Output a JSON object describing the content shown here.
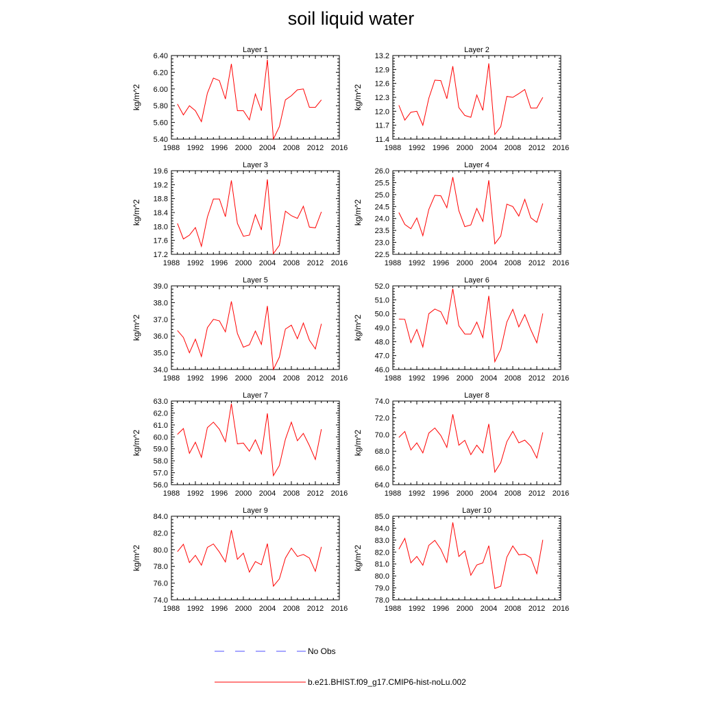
{
  "figure": {
    "title": "soil liquid water",
    "legend": [
      {
        "label": "No Obs",
        "color": "#4d4dff",
        "dash": "dashed"
      },
      {
        "label": "b.e21.BHIST.f09_g17.CMIP6-hist-noLu.002",
        "color": "#ff0000",
        "dash": "solid"
      }
    ]
  },
  "chart_data": [
    {
      "type": "line",
      "title": "Layer 1",
      "ylabel": "kg/m^2",
      "xlim": [
        1988,
        2016
      ],
      "ylim": [
        5.4,
        6.4
      ],
      "xticks": [
        "1988",
        "1992",
        "1996",
        "2000",
        "2004",
        "2008",
        "2012",
        "2016"
      ],
      "yticks": [
        "5.40",
        "5.60",
        "5.80",
        "6.00",
        "6.20",
        "6.40"
      ],
      "x": [
        1989,
        1990,
        1991,
        1992,
        1993,
        1994,
        1995,
        1996,
        1997,
        1998,
        1999,
        2000,
        2001,
        2002,
        2003,
        2004,
        2005,
        2006,
        2007,
        2008,
        2009,
        2010,
        2011,
        2012,
        2013
      ],
      "series": [
        {
          "name": "b.e21.BHIST.f09_g17.CMIP6-hist-noLu.002",
          "color": "#ff0000",
          "values": [
            5.82,
            5.69,
            5.8,
            5.74,
            5.61,
            5.95,
            6.13,
            6.1,
            5.88,
            6.3,
            5.74,
            5.74,
            5.63,
            5.94,
            5.74,
            6.35,
            5.4,
            5.55,
            5.87,
            5.92,
            5.99,
            6.0,
            5.78,
            5.78,
            5.87
          ]
        }
      ]
    },
    {
      "type": "line",
      "title": "Layer 2",
      "ylabel": "kg/m^2",
      "xlim": [
        1988,
        2016
      ],
      "ylim": [
        11.4,
        13.2
      ],
      "xticks": [
        "1988",
        "1992",
        "1996",
        "2000",
        "2004",
        "2008",
        "2012",
        "2016"
      ],
      "yticks": [
        "11.4",
        "11.7",
        "12.0",
        "12.3",
        "12.6",
        "12.9",
        "13.2"
      ],
      "x": [
        1989,
        1990,
        1991,
        1992,
        1993,
        1994,
        1995,
        1996,
        1997,
        1998,
        1999,
        2000,
        2001,
        2002,
        2003,
        2004,
        2005,
        2006,
        2007,
        2008,
        2009,
        2010,
        2011,
        2012,
        2013
      ],
      "series": [
        {
          "name": "b.e21.BHIST.f09_g17.CMIP6-hist-noLu.002",
          "color": "#ff0000",
          "values": [
            12.13,
            11.81,
            11.98,
            12.0,
            11.7,
            12.28,
            12.67,
            12.66,
            12.27,
            12.97,
            12.08,
            11.91,
            11.87,
            12.35,
            12.02,
            13.03,
            11.5,
            11.67,
            12.32,
            12.3,
            12.38,
            12.47,
            12.07,
            12.07,
            12.3
          ]
        }
      ]
    },
    {
      "type": "line",
      "title": "Layer 3",
      "ylabel": "kg/m^2",
      "xlim": [
        1988,
        2016
      ],
      "ylim": [
        17.2,
        19.6
      ],
      "xticks": [
        "1988",
        "1992",
        "1996",
        "2000",
        "2004",
        "2008",
        "2012",
        "2016"
      ],
      "yticks": [
        "17.2",
        "17.6",
        "18.0",
        "18.4",
        "18.8",
        "19.2",
        "19.6"
      ],
      "x": [
        1989,
        1990,
        1991,
        1992,
        1993,
        1994,
        1995,
        1996,
        1997,
        1998,
        1999,
        2000,
        2001,
        2002,
        2003,
        2004,
        2005,
        2006,
        2007,
        2008,
        2009,
        2010,
        2011,
        2012,
        2013
      ],
      "series": [
        {
          "name": "b.e21.BHIST.f09_g17.CMIP6-hist-noLu.002",
          "color": "#ff0000",
          "values": [
            18.09,
            17.64,
            17.75,
            17.97,
            17.43,
            18.27,
            18.79,
            18.79,
            18.28,
            19.32,
            18.09,
            17.72,
            17.75,
            18.34,
            17.9,
            19.35,
            17.22,
            17.46,
            18.44,
            18.31,
            18.23,
            18.58,
            17.98,
            17.96,
            18.42
          ]
        }
      ]
    },
    {
      "type": "line",
      "title": "Layer 4",
      "ylabel": "kg/m^2",
      "xlim": [
        1988,
        2016
      ],
      "ylim": [
        22.5,
        26.0
      ],
      "xticks": [
        "1988",
        "1992",
        "1996",
        "2000",
        "2004",
        "2008",
        "2012",
        "2016"
      ],
      "yticks": [
        "22.5",
        "23.0",
        "23.5",
        "24.0",
        "24.5",
        "25.0",
        "25.5",
        "26.0"
      ],
      "x": [
        1989,
        1990,
        1991,
        1992,
        1993,
        1994,
        1995,
        1996,
        1997,
        1998,
        1999,
        2000,
        2001,
        2002,
        2003,
        2004,
        2005,
        2006,
        2007,
        2008,
        2009,
        2010,
        2011,
        2012,
        2013
      ],
      "series": [
        {
          "name": "b.e21.BHIST.f09_g17.CMIP6-hist-noLu.002",
          "color": "#ff0000",
          "values": [
            24.25,
            23.75,
            23.57,
            24.02,
            23.28,
            24.38,
            24.97,
            24.95,
            24.45,
            25.73,
            24.33,
            23.66,
            23.73,
            24.42,
            23.88,
            25.6,
            22.94,
            23.27,
            24.6,
            24.5,
            24.1,
            24.8,
            24.03,
            23.84,
            24.63
          ]
        }
      ]
    },
    {
      "type": "line",
      "title": "Layer 5",
      "ylabel": "kg/m^2",
      "xlim": [
        1988,
        2016
      ],
      "ylim": [
        34.0,
        39.0
      ],
      "xticks": [
        "1988",
        "1992",
        "1996",
        "2000",
        "2004",
        "2008",
        "2012",
        "2016"
      ],
      "yticks": [
        "34.0",
        "35.0",
        "36.0",
        "37.0",
        "38.0",
        "39.0"
      ],
      "x": [
        1989,
        1990,
        1991,
        1992,
        1993,
        1994,
        1995,
        1996,
        1997,
        1998,
        1999,
        2000,
        2001,
        2002,
        2003,
        2004,
        2005,
        2006,
        2007,
        2008,
        2009,
        2010,
        2011,
        2012,
        2013
      ],
      "series": [
        {
          "name": "b.e21.BHIST.f09_g17.CMIP6-hist-noLu.002",
          "color": "#ff0000",
          "values": [
            36.33,
            35.92,
            35.0,
            35.81,
            34.78,
            36.5,
            37.0,
            36.91,
            36.25,
            38.07,
            36.15,
            35.33,
            35.48,
            36.3,
            35.5,
            37.8,
            34.0,
            34.74,
            36.42,
            36.65,
            35.84,
            36.78,
            35.76,
            35.23,
            36.73
          ]
        }
      ]
    },
    {
      "type": "line",
      "title": "Layer 6",
      "ylabel": "kg/m^2",
      "xlim": [
        1988,
        2016
      ],
      "ylim": [
        46.0,
        52.0
      ],
      "xticks": [
        "1988",
        "1992",
        "1996",
        "2000",
        "2004",
        "2008",
        "2012",
        "2016"
      ],
      "yticks": [
        "46.0",
        "47.0",
        "48.0",
        "49.0",
        "50.0",
        "51.0",
        "52.0"
      ],
      "x": [
        1989,
        1990,
        1991,
        1992,
        1993,
        1994,
        1995,
        1996,
        1997,
        1998,
        1999,
        2000,
        2001,
        2002,
        2003,
        2004,
        2005,
        2006,
        2007,
        2008,
        2009,
        2010,
        2011,
        2012,
        2013
      ],
      "series": [
        {
          "name": "b.e21.BHIST.f09_g17.CMIP6-hist-noLu.002",
          "color": "#ff0000",
          "values": [
            49.62,
            49.6,
            47.93,
            48.87,
            47.62,
            50.0,
            50.34,
            50.14,
            49.26,
            51.8,
            49.14,
            48.55,
            48.55,
            49.4,
            48.29,
            51.28,
            46.56,
            47.45,
            49.4,
            50.32,
            49.06,
            49.94,
            48.85,
            47.92,
            50.02
          ]
        }
      ]
    },
    {
      "type": "line",
      "title": "Layer 7",
      "ylabel": "kg/m^2",
      "xlim": [
        1988,
        2016
      ],
      "ylim": [
        56.0,
        63.0
      ],
      "xticks": [
        "1988",
        "1992",
        "1996",
        "2000",
        "2004",
        "2008",
        "2012",
        "2016"
      ],
      "yticks": [
        "56.0",
        "57.0",
        "58.0",
        "59.0",
        "60.0",
        "61.0",
        "62.0",
        "63.0"
      ],
      "x": [
        1989,
        1990,
        1991,
        1992,
        1993,
        1994,
        1995,
        1996,
        1997,
        1998,
        1999,
        2000,
        2001,
        2002,
        2003,
        2004,
        2005,
        2006,
        2007,
        2008,
        2009,
        2010,
        2011,
        2012,
        2013
      ],
      "series": [
        {
          "name": "b.e21.BHIST.f09_g17.CMIP6-hist-noLu.002",
          "color": "#ff0000",
          "values": [
            60.21,
            60.7,
            58.63,
            59.55,
            58.29,
            60.78,
            61.23,
            60.65,
            59.6,
            62.78,
            59.42,
            59.48,
            58.8,
            59.75,
            58.57,
            61.97,
            56.76,
            57.6,
            59.8,
            61.23,
            59.68,
            60.29,
            59.27,
            58.11,
            60.65
          ]
        }
      ]
    },
    {
      "type": "line",
      "title": "Layer 8",
      "ylabel": "kg/m^2",
      "xlim": [
        1988,
        2016
      ],
      "ylim": [
        64.0,
        74.0
      ],
      "xticks": [
        "1988",
        "1992",
        "1996",
        "2000",
        "2004",
        "2008",
        "2012",
        "2016"
      ],
      "yticks": [
        "64.0",
        "66.0",
        "68.0",
        "70.0",
        "72.0",
        "74.0"
      ],
      "x": [
        1989,
        1990,
        1991,
        1992,
        1993,
        1994,
        1995,
        1996,
        1997,
        1998,
        1999,
        2000,
        2001,
        2002,
        2003,
        2004,
        2005,
        2006,
        2007,
        2008,
        2009,
        2010,
        2011,
        2012,
        2013
      ],
      "series": [
        {
          "name": "b.e21.BHIST.f09_g17.CMIP6-hist-noLu.002",
          "color": "#ff0000",
          "values": [
            69.65,
            70.36,
            68.15,
            69.0,
            67.8,
            70.17,
            70.78,
            69.88,
            68.46,
            72.41,
            68.72,
            69.3,
            67.59,
            68.72,
            67.8,
            71.26,
            65.5,
            66.65,
            69.14,
            70.38,
            69.0,
            69.33,
            68.59,
            67.19,
            70.25
          ]
        }
      ]
    },
    {
      "type": "line",
      "title": "Layer 9",
      "ylabel": "kg/m^2",
      "xlim": [
        1988,
        2016
      ],
      "ylim": [
        74.0,
        84.0
      ],
      "xticks": [
        "1988",
        "1992",
        "1996",
        "2000",
        "2004",
        "2008",
        "2012",
        "2016"
      ],
      "yticks": [
        "74.0",
        "76.0",
        "78.0",
        "80.0",
        "82.0",
        "84.0"
      ],
      "x": [
        1989,
        1990,
        1991,
        1992,
        1993,
        1994,
        1995,
        1996,
        1997,
        1998,
        1999,
        2000,
        2001,
        2002,
        2003,
        2004,
        2005,
        2006,
        2007,
        2008,
        2009,
        2010,
        2011,
        2012,
        2013
      ],
      "series": [
        {
          "name": "b.e21.BHIST.f09_g17.CMIP6-hist-noLu.002",
          "color": "#ff0000",
          "values": [
            79.76,
            80.65,
            78.46,
            79.32,
            78.14,
            80.27,
            80.68,
            79.72,
            78.53,
            82.34,
            78.85,
            79.58,
            77.32,
            78.57,
            78.2,
            80.72,
            75.64,
            76.51,
            78.99,
            80.19,
            79.19,
            79.43,
            79.0,
            77.41,
            80.33
          ]
        }
      ]
    },
    {
      "type": "line",
      "title": "Layer 10",
      "ylabel": "kg/m^2",
      "xlim": [
        1988,
        2016
      ],
      "ylim": [
        78.0,
        85.0
      ],
      "xticks": [
        "1988",
        "1992",
        "1996",
        "2000",
        "2004",
        "2008",
        "2012",
        "2016"
      ],
      "yticks": [
        "78.0",
        "79.0",
        "80.0",
        "81.0",
        "82.0",
        "83.0",
        "84.0",
        "85.0"
      ],
      "x": [
        1989,
        1990,
        1991,
        1992,
        1993,
        1994,
        1995,
        1996,
        1997,
        1998,
        1999,
        2000,
        2001,
        2002,
        2003,
        2004,
        2005,
        2006,
        2007,
        2008,
        2009,
        2010,
        2011,
        2012,
        2013
      ],
      "series": [
        {
          "name": "b.e21.BHIST.f09_g17.CMIP6-hist-noLu.002",
          "color": "#ff0000",
          "values": [
            82.24,
            83.14,
            81.1,
            81.63,
            80.9,
            82.56,
            82.98,
            82.24,
            81.13,
            84.48,
            81.63,
            82.1,
            80.06,
            80.92,
            81.1,
            82.53,
            78.95,
            79.15,
            81.57,
            82.51,
            81.77,
            81.82,
            81.52,
            80.19,
            83.02
          ]
        }
      ]
    }
  ]
}
